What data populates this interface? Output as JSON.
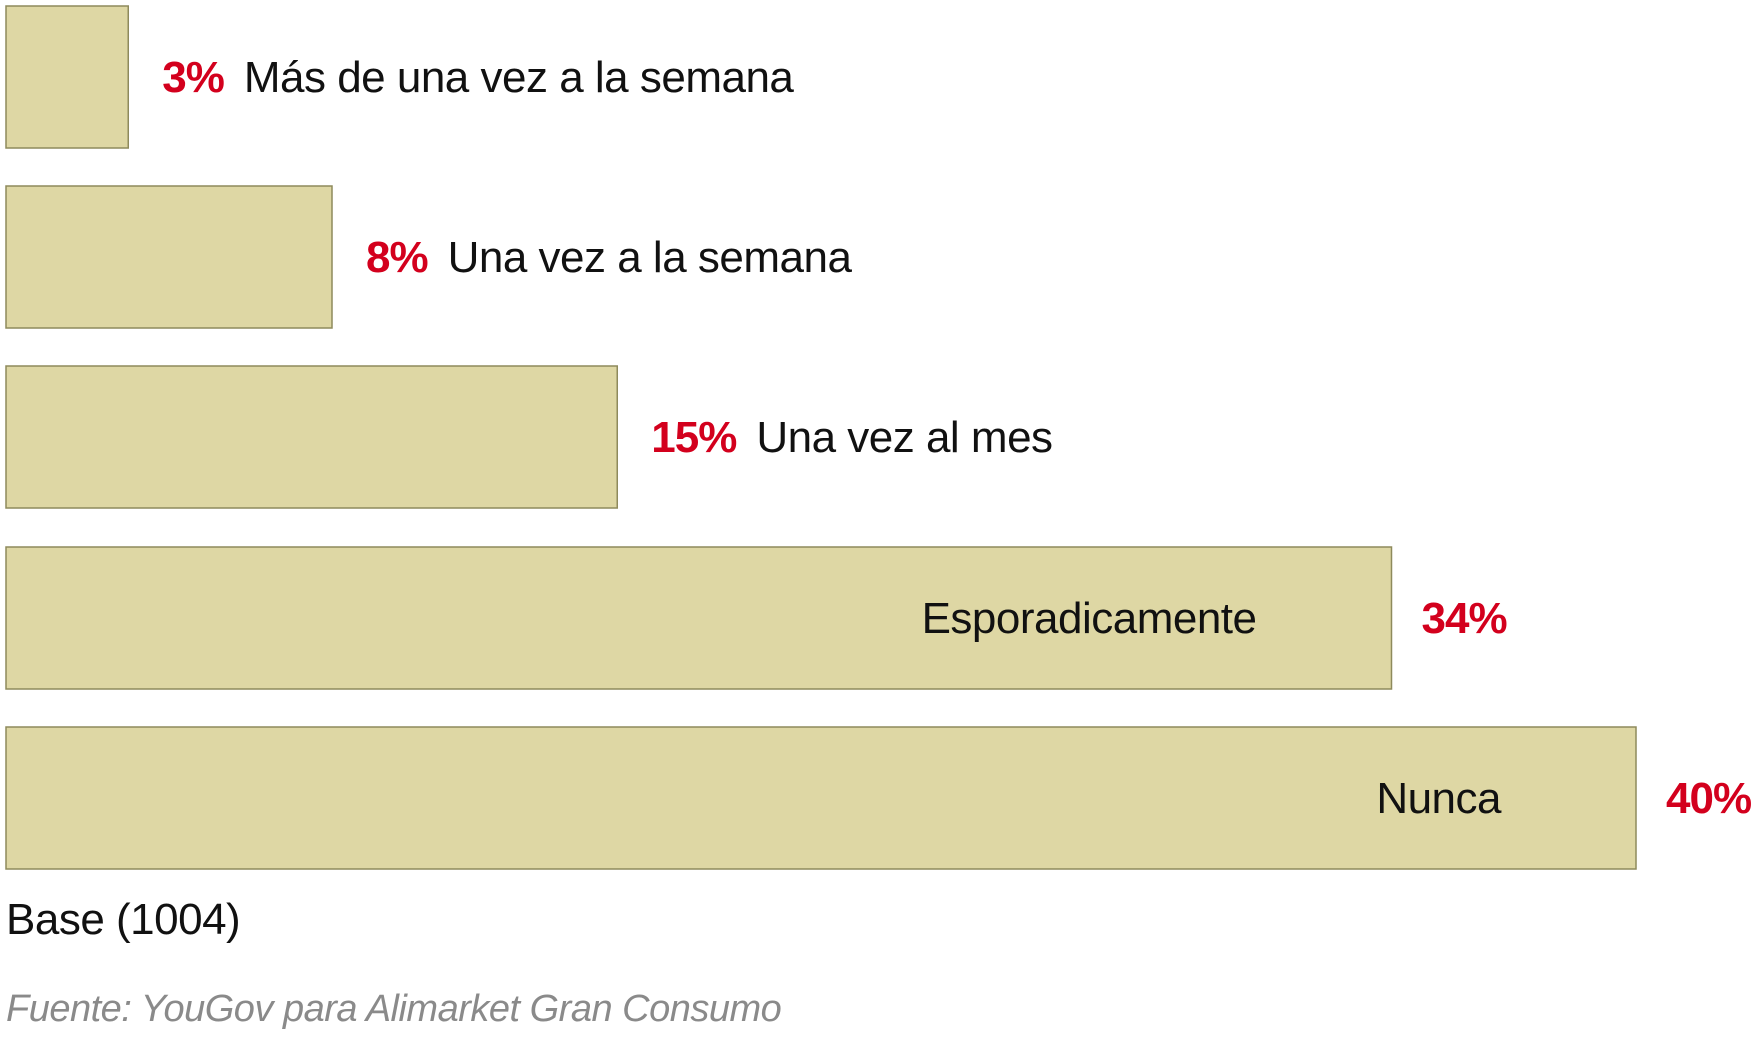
{
  "chart_data": {
    "type": "bar",
    "orientation": "horizontal",
    "categories": [
      "Más de una vez a la semana",
      "Una vez a la semana",
      "Una vez al mes",
      "Esporadicamente",
      "Nunca"
    ],
    "values": [
      3,
      8,
      15,
      34,
      40
    ],
    "value_labels": [
      "3%",
      "8%",
      "15%",
      "34%",
      "40%"
    ],
    "unit": "%",
    "xlim": [
      0,
      40
    ],
    "grid": false,
    "colors": {
      "bar_fill": "#ded7a4",
      "bar_stroke": "#8e8a5c",
      "value_text": "#d3001d",
      "label_text": "#111111",
      "source_text": "#8a8a8a"
    }
  },
  "footer": {
    "base": "Base (1004)",
    "source": "Fuente: YouGov para Alimarket Gran Consumo"
  }
}
